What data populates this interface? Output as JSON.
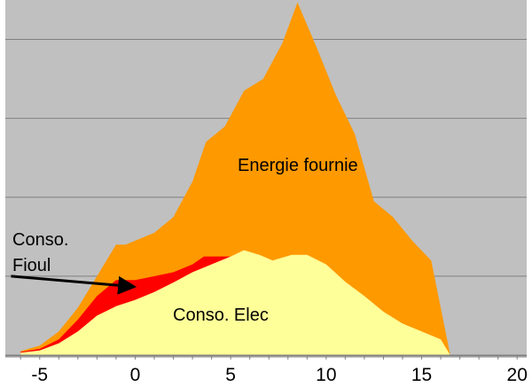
{
  "chart_data": {
    "type": "area",
    "x_ticks": [
      -5,
      0,
      5,
      10,
      15,
      20
    ],
    "xlim": [
      -6.8,
      20.5
    ],
    "ylim": [
      0,
      4.5
    ],
    "grid": true,
    "series": [
      {
        "key": "fournie",
        "color": "#FF9900",
        "points": [
          [
            -6,
            0.05
          ],
          [
            -5,
            0.12
          ],
          [
            -4,
            0.3
          ],
          [
            -3,
            0.6
          ],
          [
            -2,
            1.0
          ],
          [
            -1,
            1.4
          ],
          [
            -0.5,
            1.4
          ],
          [
            0,
            1.45
          ],
          [
            1,
            1.55
          ],
          [
            2,
            1.75
          ],
          [
            3,
            2.2
          ],
          [
            3.7,
            2.7
          ],
          [
            4.7,
            2.9
          ],
          [
            5.7,
            3.35
          ],
          [
            6.7,
            3.5
          ],
          [
            7.7,
            3.95
          ],
          [
            8.5,
            4.47
          ],
          [
            9.5,
            3.9
          ],
          [
            10.5,
            3.3
          ],
          [
            11.5,
            2.8
          ],
          [
            12.5,
            1.95
          ],
          [
            13.5,
            1.75
          ],
          [
            14.5,
            1.45
          ],
          [
            15.5,
            1.2
          ],
          [
            16.5,
            0
          ]
        ]
      },
      {
        "key": "fioul",
        "color": "#FF0000",
        "points": [
          [
            -6,
            0.04
          ],
          [
            -5,
            0.08
          ],
          [
            -4,
            0.2
          ],
          [
            -3,
            0.45
          ],
          [
            -2,
            0.75
          ],
          [
            -1,
            0.95
          ],
          [
            0,
            0.95
          ],
          [
            1,
            1.0
          ],
          [
            2,
            1.05
          ],
          [
            3,
            1.15
          ],
          [
            3.6,
            1.25
          ],
          [
            4.2,
            1.25
          ],
          [
            5.2,
            1.25
          ]
        ]
      },
      {
        "key": "elec",
        "color": "#FFFF99",
        "points": [
          [
            -6,
            0.03
          ],
          [
            -5,
            0.06
          ],
          [
            -4,
            0.15
          ],
          [
            -3,
            0.3
          ],
          [
            -2,
            0.5
          ],
          [
            -1,
            0.62
          ],
          [
            0,
            0.7
          ],
          [
            1,
            0.8
          ],
          [
            2,
            0.92
          ],
          [
            3,
            1.05
          ],
          [
            4,
            1.15
          ],
          [
            5,
            1.25
          ],
          [
            5.7,
            1.33
          ],
          [
            6.5,
            1.27
          ],
          [
            7.2,
            1.2
          ],
          [
            8.2,
            1.27
          ],
          [
            9,
            1.27
          ],
          [
            10,
            1.15
          ],
          [
            11,
            0.93
          ],
          [
            12,
            0.75
          ],
          [
            13,
            0.55
          ],
          [
            14,
            0.4
          ],
          [
            15,
            0.3
          ],
          [
            16,
            0.2
          ],
          [
            16.5,
            0
          ]
        ]
      }
    ],
    "labels": {
      "fournie": "Energie fournie",
      "fioul_line1": "Conso.",
      "fioul_line2": "Fioul",
      "elec": "Conso. Elec"
    },
    "arrow": {
      "from": [
        -6.5,
        1.0
      ],
      "to": [
        -0.2,
        0.87
      ]
    }
  }
}
